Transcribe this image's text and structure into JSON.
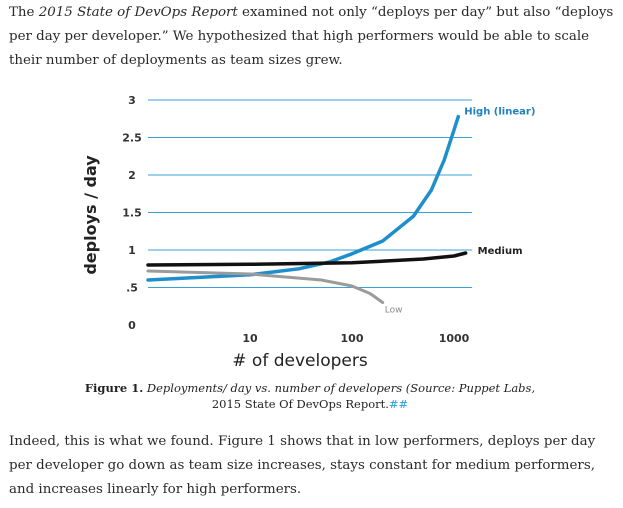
{
  "intro": {
    "part1": "The ",
    "report_title": "2015 State of DevOps Report",
    "part2": " examined not only “deploys per day” but also “deploys per day per developer.” We hypothesized that high performers would be able to scale their number of deployments as team sizes grew."
  },
  "chart_data": {
    "type": "line",
    "xlabel": "# of developers",
    "ylabel": "deploys / day",
    "x_ticks": [
      "10",
      "100",
      "1000"
    ],
    "x_scale": "log",
    "xlim": [
      1,
      1500
    ],
    "y_ticks": [
      "0",
      ".5",
      "1",
      "1.5",
      "2",
      "2.5",
      "3"
    ],
    "ylim": [
      0,
      3
    ],
    "grid": "horizontal",
    "series": [
      {
        "name": "High (linear)",
        "color": "#1f8fcc",
        "x": [
          1,
          10,
          30,
          60,
          100,
          200,
          400,
          600,
          800,
          1000,
          1100
        ],
        "y": [
          0.6,
          0.67,
          0.75,
          0.84,
          0.95,
          1.12,
          1.45,
          1.8,
          2.2,
          2.6,
          2.78
        ]
      },
      {
        "name": "Medium",
        "color": "#111111",
        "x": [
          1,
          10,
          100,
          500,
          1000,
          1300
        ],
        "y": [
          0.8,
          0.81,
          0.83,
          0.88,
          0.92,
          0.96
        ]
      },
      {
        "name": "Low",
        "color": "#9b9b9b",
        "x": [
          1,
          10,
          50,
          100,
          150,
          200
        ],
        "y": [
          0.72,
          0.68,
          0.6,
          0.52,
          0.42,
          0.3
        ]
      }
    ]
  },
  "caption": {
    "figure_label": "Figure 1.",
    "text_italic": " Deployments/ day vs. number of developers (Source: Puppet Labs,",
    "text_plain": " 2015 State Of DevOps Report.",
    "link": "##"
  },
  "outro": {
    "text": "Indeed, this is what we found. Figure 1 shows that in low performers, deploys per day per developer go down as team size increases, stays constant for medium performers, and increases linearly for high performers."
  }
}
